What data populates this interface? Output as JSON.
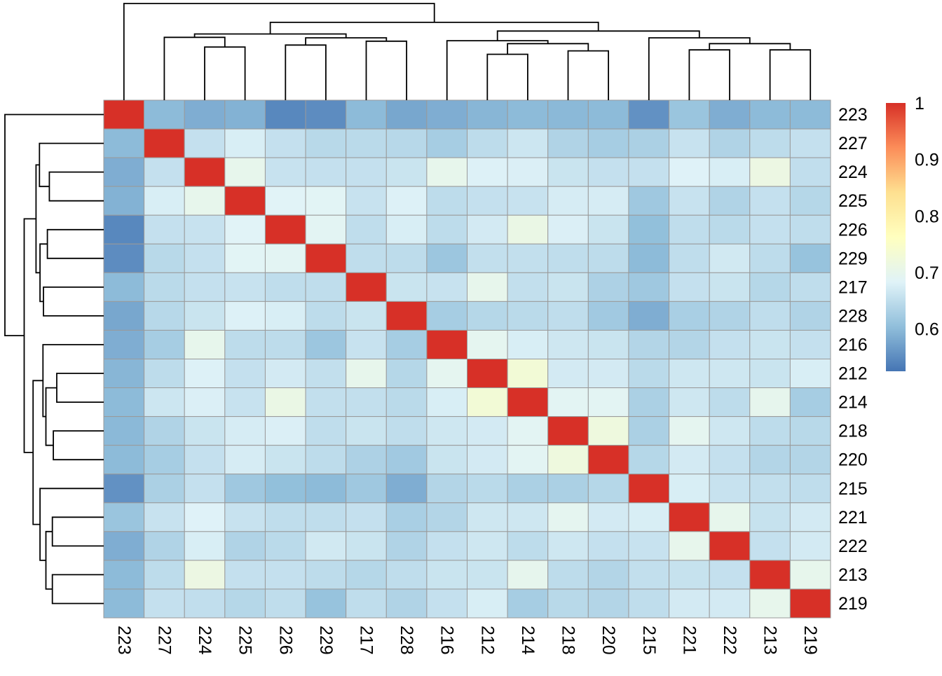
{
  "chart_data": {
    "type": "heatmap",
    "title": "",
    "description": "Clustered correlation heatmap with row and column dendrograms",
    "row_labels": [
      "223",
      "227",
      "224",
      "225",
      "226",
      "229",
      "217",
      "228",
      "216",
      "212",
      "214",
      "218",
      "220",
      "215",
      "221",
      "222",
      "213",
      "219"
    ],
    "col_labels": [
      "223",
      "227",
      "224",
      "225",
      "226",
      "229",
      "217",
      "228",
      "216",
      "212",
      "214",
      "218",
      "220",
      "215",
      "221",
      "222",
      "213",
      "219"
    ],
    "matrix": [
      [
        1.0,
        0.6,
        0.585,
        0.59,
        0.545,
        0.55,
        0.6,
        0.578,
        0.585,
        0.595,
        0.6,
        0.598,
        0.6,
        0.555,
        0.613,
        0.585,
        0.6,
        0.6
      ],
      [
        0.6,
        1.0,
        0.655,
        0.675,
        0.655,
        0.643,
        0.645,
        0.642,
        0.625,
        0.648,
        0.663,
        0.635,
        0.625,
        0.63,
        0.658,
        0.635,
        0.648,
        0.655
      ],
      [
        0.585,
        0.655,
        1.0,
        0.7,
        0.658,
        0.655,
        0.655,
        0.66,
        0.7,
        0.68,
        0.678,
        0.66,
        0.655,
        0.655,
        0.682,
        0.675,
        0.713,
        0.652
      ],
      [
        0.59,
        0.675,
        0.7,
        1.0,
        0.685,
        0.688,
        0.658,
        0.68,
        0.648,
        0.655,
        0.658,
        0.673,
        0.673,
        0.618,
        0.658,
        0.635,
        0.655,
        0.64
      ],
      [
        0.545,
        0.655,
        0.658,
        0.685,
        1.0,
        0.69,
        0.65,
        0.675,
        0.648,
        0.67,
        0.71,
        0.678,
        0.66,
        0.605,
        0.65,
        0.645,
        0.655,
        0.65
      ],
      [
        0.55,
        0.643,
        0.655,
        0.688,
        0.69,
        1.0,
        0.65,
        0.648,
        0.615,
        0.653,
        0.653,
        0.65,
        0.648,
        0.6,
        0.65,
        0.668,
        0.648,
        0.61
      ],
      [
        0.6,
        0.645,
        0.655,
        0.658,
        0.65,
        0.65,
        1.0,
        0.66,
        0.658,
        0.7,
        0.653,
        0.66,
        0.632,
        0.618,
        0.655,
        0.66,
        0.64,
        0.65
      ],
      [
        0.578,
        0.642,
        0.66,
        0.68,
        0.675,
        0.648,
        0.66,
        1.0,
        0.625,
        0.64,
        0.645,
        0.65,
        0.62,
        0.585,
        0.628,
        0.635,
        0.65,
        0.635
      ],
      [
        0.585,
        0.625,
        0.7,
        0.648,
        0.648,
        0.615,
        0.658,
        0.625,
        1.0,
        0.695,
        0.675,
        0.665,
        0.66,
        0.638,
        0.638,
        0.655,
        0.66,
        0.655
      ],
      [
        0.595,
        0.648,
        0.68,
        0.655,
        0.67,
        0.653,
        0.7,
        0.64,
        0.695,
        1.0,
        0.73,
        0.67,
        0.67,
        0.645,
        0.665,
        0.665,
        0.66,
        0.675
      ],
      [
        0.6,
        0.663,
        0.678,
        0.658,
        0.71,
        0.653,
        0.653,
        0.645,
        0.675,
        0.73,
        1.0,
        0.69,
        0.69,
        0.63,
        0.665,
        0.648,
        0.698,
        0.625
      ],
      [
        0.598,
        0.635,
        0.66,
        0.673,
        0.678,
        0.65,
        0.66,
        0.65,
        0.665,
        0.67,
        0.69,
        1.0,
        0.72,
        0.63,
        0.695,
        0.665,
        0.648,
        0.643
      ],
      [
        0.6,
        0.625,
        0.655,
        0.673,
        0.66,
        0.648,
        0.632,
        0.62,
        0.66,
        0.67,
        0.69,
        0.72,
        1.0,
        0.64,
        0.67,
        0.655,
        0.638,
        0.638
      ],
      [
        0.555,
        0.63,
        0.655,
        0.618,
        0.605,
        0.6,
        0.618,
        0.585,
        0.638,
        0.645,
        0.63,
        0.63,
        0.64,
        1.0,
        0.675,
        0.658,
        0.653,
        0.65
      ],
      [
        0.613,
        0.658,
        0.682,
        0.658,
        0.65,
        0.65,
        0.655,
        0.628,
        0.638,
        0.665,
        0.665,
        0.695,
        0.67,
        0.675,
        1.0,
        0.7,
        0.657,
        0.67
      ],
      [
        0.585,
        0.635,
        0.675,
        0.635,
        0.645,
        0.668,
        0.66,
        0.635,
        0.655,
        0.665,
        0.648,
        0.665,
        0.655,
        0.658,
        0.7,
        1.0,
        0.655,
        0.67
      ],
      [
        0.6,
        0.648,
        0.713,
        0.655,
        0.655,
        0.648,
        0.64,
        0.65,
        0.66,
        0.66,
        0.698,
        0.648,
        0.638,
        0.653,
        0.657,
        0.655,
        1.0,
        0.7
      ],
      [
        0.6,
        0.655,
        0.652,
        0.64,
        0.65,
        0.61,
        0.65,
        0.635,
        0.655,
        0.675,
        0.625,
        0.643,
        0.638,
        0.65,
        0.67,
        0.67,
        0.7,
        1.0
      ]
    ],
    "value_domain": [
      0.525,
      1.0
    ],
    "colormap": {
      "name": "RdYlBu-reversed",
      "anchors": [
        "#4575b4",
        "#91bfdb",
        "#e0f3f8",
        "#ffffbf",
        "#fee090",
        "#fc8d59",
        "#d73027"
      ]
    },
    "colorbar": {
      "position": "right",
      "tick_labels": [
        "1",
        "0.9",
        "0.8",
        "0.7",
        "0.6"
      ],
      "tick_values": [
        1,
        0.9,
        0.8,
        0.7,
        0.6
      ]
    },
    "grid_color": "#9a9a9a",
    "dendrogram_color": "#000000",
    "clustering_tree": {
      "h": 1.0,
      "c": [
        {
          "leaf": 0
        },
        {
          "h": 0.805,
          "c": [
            {
              "h": 0.685,
              "c": [
                {
                  "h": 0.65,
                  "c": [
                    {
                      "leaf": 1
                    },
                    {
                      "h": 0.55,
                      "c": [
                        {
                          "leaf": 2
                        },
                        {
                          "leaf": 3
                        }
                      ]
                    }
                  ]
                },
                {
                  "h": 0.645,
                  "c": [
                    {
                      "h": 0.57,
                      "c": [
                        {
                          "leaf": 4
                        },
                        {
                          "leaf": 5
                        }
                      ]
                    },
                    {
                      "h": 0.61,
                      "c": [
                        {
                          "leaf": 6
                        },
                        {
                          "leaf": 7
                        }
                      ]
                    }
                  ]
                }
              ]
            },
            {
              "h": 0.715,
              "c": [
                {
                  "h": 0.615,
                  "c": [
                    {
                      "leaf": 8
                    },
                    {
                      "h": 0.585,
                      "c": [
                        {
                          "h": 0.475,
                          "c": [
                            {
                              "leaf": 9
                            },
                            {
                              "leaf": 10
                            }
                          ]
                        },
                        {
                          "h": 0.51,
                          "c": [
                            {
                              "leaf": 11
                            },
                            {
                              "leaf": 12
                            }
                          ]
                        }
                      ]
                    }
                  ]
                },
                {
                  "h": 0.645,
                  "c": [
                    {
                      "leaf": 13
                    },
                    {
                      "h": 0.585,
                      "c": [
                        {
                          "h": 0.52,
                          "c": [
                            {
                              "leaf": 14
                            },
                            {
                              "leaf": 15
                            }
                          ]
                        },
                        {
                          "h": 0.52,
                          "c": [
                            {
                              "leaf": 16
                            },
                            {
                              "leaf": 17
                            }
                          ]
                        }
                      ]
                    }
                  ]
                }
              ]
            }
          ]
        }
      ]
    }
  }
}
